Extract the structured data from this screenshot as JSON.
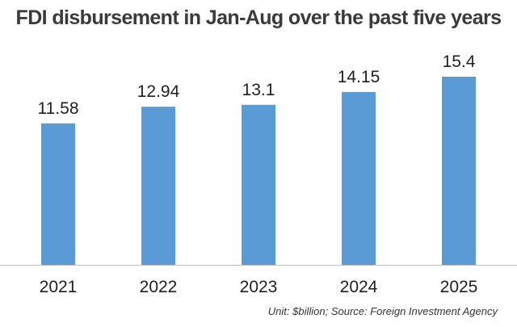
{
  "chart_data": {
    "type": "bar",
    "title": "FDI disbursement in Jan-Aug over the past five years",
    "categories": [
      "2021",
      "2022",
      "2023",
      "2024",
      "2025"
    ],
    "values": [
      11.58,
      12.94,
      13.1,
      14.15,
      15.4
    ],
    "value_labels": [
      "11.58",
      "12.94",
      "13.1",
      "14.15",
      "15.4"
    ],
    "xlabel": "",
    "ylabel": "",
    "ylim": [
      0,
      15.4
    ],
    "grid": false,
    "legend": "none",
    "bar_color": "#5b9bd5",
    "axis_color": "#bfbfbf",
    "footnote": "Unit: $billion; Source: Foreign Investment Agency"
  }
}
